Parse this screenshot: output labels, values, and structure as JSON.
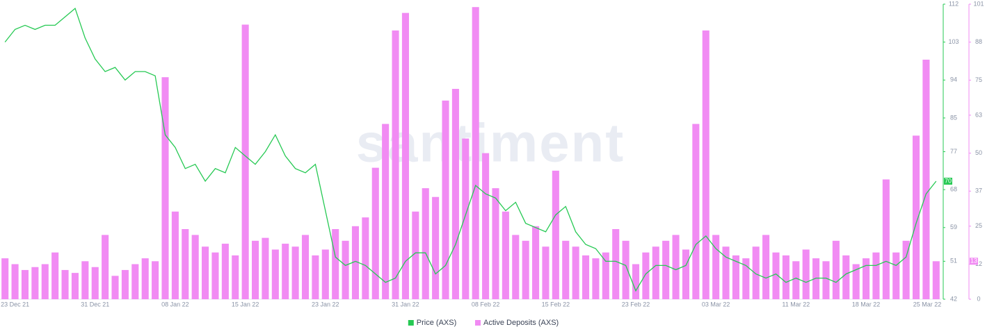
{
  "chart_data": {
    "type": "bar-line",
    "watermark": "santiment",
    "categories": [
      null,
      "23 Dec 21",
      null,
      null,
      null,
      null,
      null,
      null,
      null,
      "31 Dec 21",
      null,
      null,
      null,
      null,
      null,
      null,
      null,
      "08 Jan 22",
      null,
      null,
      null,
      null,
      null,
      null,
      "15 Jan 22",
      null,
      null,
      null,
      null,
      null,
      null,
      null,
      "23 Jan 22",
      null,
      null,
      null,
      null,
      null,
      null,
      null,
      "31 Jan 22",
      null,
      null,
      null,
      null,
      null,
      null,
      null,
      "08 Feb 22",
      null,
      null,
      null,
      null,
      null,
      null,
      "15 Feb 22",
      null,
      null,
      null,
      null,
      null,
      null,
      null,
      "23 Feb 22",
      null,
      null,
      null,
      null,
      null,
      null,
      null,
      "03 Mar 22",
      null,
      null,
      null,
      null,
      null,
      null,
      null,
      "11 Mar 22",
      null,
      null,
      null,
      null,
      null,
      null,
      "18 Mar 22",
      null,
      null,
      null,
      null,
      null,
      null,
      "25 Mar 22"
    ],
    "series": [
      {
        "name": "Price (AXS)",
        "color": "#26c953",
        "type": "line",
        "axis": "y",
        "values": [
          103,
          106,
          107,
          106,
          107,
          107,
          109,
          111,
          104,
          99,
          96,
          97,
          94,
          96,
          96,
          95,
          81,
          78,
          73,
          74,
          70,
          73,
          72,
          78,
          76,
          74,
          77,
          81,
          76,
          73,
          72,
          74,
          63,
          52,
          50,
          51,
          50,
          48,
          46,
          47,
          51,
          53,
          53,
          48,
          50,
          55,
          62,
          69,
          67,
          66,
          63,
          65,
          60,
          59,
          58,
          62,
          64,
          58,
          55,
          54,
          51,
          51,
          50,
          44,
          48,
          50,
          50,
          49,
          50,
          55,
          57,
          54,
          52,
          51,
          50,
          48,
          47,
          48,
          46,
          47,
          46,
          47,
          47,
          46,
          48,
          49,
          50,
          50,
          51,
          50,
          52,
          60,
          67,
          70
        ]
      },
      {
        "name": "Active Deposits (AXS)",
        "color": "#f18bf3",
        "type": "bar",
        "axis": "y2",
        "values": [
          14,
          12,
          10,
          11,
          12,
          16,
          10,
          9,
          13,
          11,
          22,
          8,
          10,
          12,
          14,
          13,
          76,
          30,
          24,
          22,
          18,
          16,
          19,
          15,
          94,
          20,
          21,
          17,
          19,
          18,
          22,
          15,
          17,
          24,
          20,
          25,
          28,
          45,
          60,
          92,
          98,
          30,
          38,
          35,
          68,
          72,
          55,
          100,
          50,
          38,
          30,
          22,
          20,
          25,
          18,
          44,
          20,
          18,
          15,
          14,
          16,
          24,
          20,
          12,
          16,
          18,
          20,
          22,
          17,
          60,
          92,
          22,
          18,
          15,
          14,
          18,
          22,
          16,
          15,
          13,
          17,
          14,
          13,
          20,
          15,
          12,
          14,
          16,
          41,
          16,
          20,
          56,
          82,
          13
        ]
      }
    ],
    "ylim": [
      42,
      112
    ],
    "yticks": [
      42,
      51,
      59,
      68,
      77,
      85,
      94,
      103,
      112
    ],
    "y2lim": [
      0,
      101
    ],
    "y2ticks": [
      0,
      12,
      25,
      37,
      50,
      63,
      75,
      88,
      101
    ],
    "legend": "bottom"
  }
}
